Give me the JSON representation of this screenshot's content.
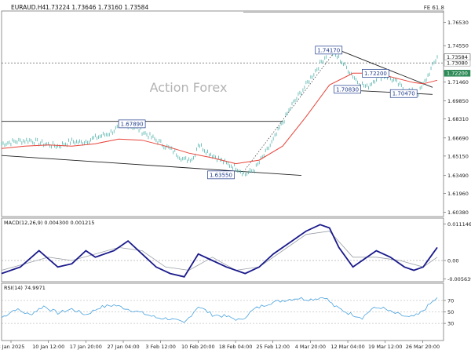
{
  "header": {
    "symbol": "EURAUD.H4",
    "ohlc": "1.73224 1.73646 1.73160 1.73584",
    "fib_label": "FE 61.8"
  },
  "watermark": "Action Forex",
  "colors": {
    "price": "#3aa8a0",
    "ma": "#e8443a",
    "macd": "#1a1a8c",
    "signal": "#9aa0a6",
    "rsi": "#4aa3df",
    "trend": "#222222",
    "label_bg": "#1f3b8c"
  },
  "chart_data": [
    {
      "type": "line",
      "name": "price",
      "ylim": [
        1.6,
        1.775
      ],
      "y_ticks": [
        "1.76530",
        "1.74550",
        "1.72360",
        "1.71460",
        "1.69850",
        "1.68310",
        "1.66690",
        "1.65150",
        "1.63490",
        "1.61960",
        "1.60380"
      ],
      "x_ticks": [
        "3 Jan 2025",
        "10 Jan 12:00",
        "17 Jan 20:00",
        "27 Jan 04:00",
        "3 Feb 12:00",
        "10 Feb 20:00",
        "18 Feb 04:00",
        "25 Feb 12:00",
        "4 Mar 20:00",
        "12 Mar 04:00",
        "19 Mar 12:00",
        "26 Mar 20:00"
      ],
      "price_path": [
        [
          0,
          1.662
        ],
        [
          3,
          1.664
        ],
        [
          6,
          1.665
        ],
        [
          9,
          1.662
        ],
        [
          12,
          1.66
        ],
        [
          15,
          1.664
        ],
        [
          17,
          1.663
        ],
        [
          20,
          1.667
        ],
        [
          23,
          1.671
        ],
        [
          25,
          1.676
        ],
        [
          27,
          1.678
        ],
        [
          29,
          1.675
        ],
        [
          31,
          1.67
        ],
        [
          33,
          1.665
        ],
        [
          35,
          1.66
        ],
        [
          37,
          1.655
        ],
        [
          39,
          1.648
        ],
        [
          41,
          1.65
        ],
        [
          42,
          1.662
        ],
        [
          44,
          1.655
        ],
        [
          46,
          1.65
        ],
        [
          48,
          1.645
        ],
        [
          50,
          1.642
        ],
        [
          52,
          1.636
        ],
        [
          54,
          1.64
        ],
        [
          56,
          1.652
        ],
        [
          58,
          1.665
        ],
        [
          60,
          1.68
        ],
        [
          62,
          1.695
        ],
        [
          65,
          1.712
        ],
        [
          68,
          1.73
        ],
        [
          70,
          1.741
        ],
        [
          72,
          1.735
        ],
        [
          74,
          1.725
        ],
        [
          76,
          1.715
        ],
        [
          78,
          1.71
        ],
        [
          80,
          1.718
        ],
        [
          82,
          1.72
        ],
        [
          84,
          1.715
        ],
        [
          86,
          1.708
        ],
        [
          88,
          1.706
        ],
        [
          89,
          1.705
        ],
        [
          90,
          1.712
        ],
        [
          91,
          1.72
        ],
        [
          92,
          1.728
        ],
        [
          93,
          1.736
        ]
      ],
      "ma_path": [
        [
          0,
          1.658
        ],
        [
          5,
          1.66
        ],
        [
          10,
          1.661
        ],
        [
          15,
          1.66
        ],
        [
          20,
          1.662
        ],
        [
          25,
          1.666
        ],
        [
          30,
          1.665
        ],
        [
          35,
          1.66
        ],
        [
          40,
          1.654
        ],
        [
          45,
          1.65
        ],
        [
          50,
          1.645
        ],
        [
          55,
          1.648
        ],
        [
          60,
          1.66
        ],
        [
          65,
          1.685
        ],
        [
          70,
          1.712
        ],
        [
          75,
          1.722
        ],
        [
          80,
          1.722
        ],
        [
          85,
          1.717
        ],
        [
          88,
          1.714
        ],
        [
          90,
          1.713
        ],
        [
          93,
          1.716
        ]
      ],
      "labels": [
        {
          "text": "1.74170",
          "x": 70,
          "y": 1.7417
        },
        {
          "text": "1.72200",
          "x": 80,
          "y": 1.722
        },
        {
          "text": "1.70830",
          "x": 74,
          "y": 1.7083
        },
        {
          "text": "1.70470",
          "x": 86,
          "y": 1.7047
        },
        {
          "text": "1.67890",
          "x": 28,
          "y": 1.6789
        },
        {
          "text": "1.63550",
          "x": 47,
          "y": 1.6355
        }
      ],
      "price_marks": [
        {
          "text": "1.73584",
          "y": 1.73584,
          "style": "current"
        },
        {
          "text": "1.73080",
          "y": 1.7308,
          "style": "plain"
        },
        {
          "text": "1.72200",
          "y": 1.722,
          "style": "ref"
        }
      ],
      "trendlines": [
        {
          "from": [
            0,
            1.681
          ],
          "to": [
            60,
            1.681
          ]
        },
        {
          "from": [
            0,
            1.652
          ],
          "to": [
            64,
            1.635
          ]
        },
        {
          "from": [
            72,
            1.7417
          ],
          "to": [
            92,
            1.71
          ]
        },
        {
          "from": [
            72,
            1.708
          ],
          "to": [
            92,
            1.704
          ]
        }
      ],
      "dotted_channel": [
        {
          "from": [
            52,
            1.64
          ],
          "to": [
            72,
            1.745
          ]
        }
      ],
      "hlines": [
        {
          "y": 1.7308,
          "dash": true
        },
        {
          "y": 1.774,
          "dash": false
        }
      ]
    },
    {
      "type": "line",
      "name": "MACD(12,26,9) 0.004300 0.001215",
      "ylim": [
        -0.0065,
        0.013
      ],
      "y_ticks": [
        "0.011146",
        "0.00",
        "-0.005639"
      ],
      "macd_points": [
        [
          0,
          -0.004
        ],
        [
          4,
          -0.002
        ],
        [
          8,
          0.003
        ],
        [
          12,
          -0.002
        ],
        [
          15,
          -0.001
        ],
        [
          18,
          0.003
        ],
        [
          20,
          0.001
        ],
        [
          24,
          0.003
        ],
        [
          27,
          0.006
        ],
        [
          30,
          0.002
        ],
        [
          33,
          -0.002
        ],
        [
          36,
          -0.004
        ],
        [
          39,
          -0.005
        ],
        [
          42,
          0.002
        ],
        [
          45,
          0.0
        ],
        [
          48,
          -0.002
        ],
        [
          52,
          -0.004
        ],
        [
          55,
          -0.002
        ],
        [
          58,
          0.002
        ],
        [
          62,
          0.006
        ],
        [
          65,
          0.009
        ],
        [
          68,
          0.011
        ],
        [
          70,
          0.01
        ],
        [
          72,
          0.004
        ],
        [
          75,
          -0.002
        ],
        [
          78,
          0.001
        ],
        [
          80,
          0.003
        ],
        [
          83,
          0.001
        ],
        [
          86,
          -0.002
        ],
        [
          88,
          -0.003
        ],
        [
          90,
          -0.002
        ],
        [
          92,
          0.002
        ],
        [
          93,
          0.004
        ]
      ],
      "signal_points": [
        [
          0,
          -0.003
        ],
        [
          5,
          -0.001
        ],
        [
          10,
          0.001
        ],
        [
          15,
          0.0
        ],
        [
          20,
          0.002
        ],
        [
          25,
          0.004
        ],
        [
          30,
          0.003
        ],
        [
          35,
          -0.002
        ],
        [
          40,
          -0.003
        ],
        [
          45,
          0.001
        ],
        [
          50,
          -0.003
        ],
        [
          55,
          -0.002
        ],
        [
          60,
          0.003
        ],
        [
          65,
          0.008
        ],
        [
          70,
          0.009
        ],
        [
          75,
          0.001
        ],
        [
          80,
          0.001
        ],
        [
          85,
          0.0
        ],
        [
          90,
          -0.002
        ],
        [
          93,
          0.001
        ]
      ]
    },
    {
      "type": "line",
      "name": "RSI(14) 74.9971",
      "ylim": [
        0,
        100
      ],
      "y_ticks": [
        "70",
        "50",
        "30"
      ],
      "rsi_points": [
        [
          0,
          40
        ],
        [
          3,
          55
        ],
        [
          6,
          45
        ],
        [
          9,
          60
        ],
        [
          12,
          48
        ],
        [
          15,
          55
        ],
        [
          18,
          45
        ],
        [
          21,
          58
        ],
        [
          24,
          62
        ],
        [
          27,
          55
        ],
        [
          30,
          48
        ],
        [
          33,
          40
        ],
        [
          36,
          38
        ],
        [
          39,
          30
        ],
        [
          42,
          60
        ],
        [
          45,
          45
        ],
        [
          48,
          42
        ],
        [
          51,
          35
        ],
        [
          54,
          55
        ],
        [
          57,
          65
        ],
        [
          60,
          70
        ],
        [
          63,
          74
        ],
        [
          66,
          72
        ],
        [
          69,
          76
        ],
        [
          71,
          60
        ],
        [
          74,
          48
        ],
        [
          77,
          40
        ],
        [
          79,
          55
        ],
        [
          81,
          58
        ],
        [
          83,
          50
        ],
        [
          85,
          45
        ],
        [
          87,
          40
        ],
        [
          89,
          45
        ],
        [
          91,
          60
        ],
        [
          93,
          75
        ]
      ]
    }
  ]
}
